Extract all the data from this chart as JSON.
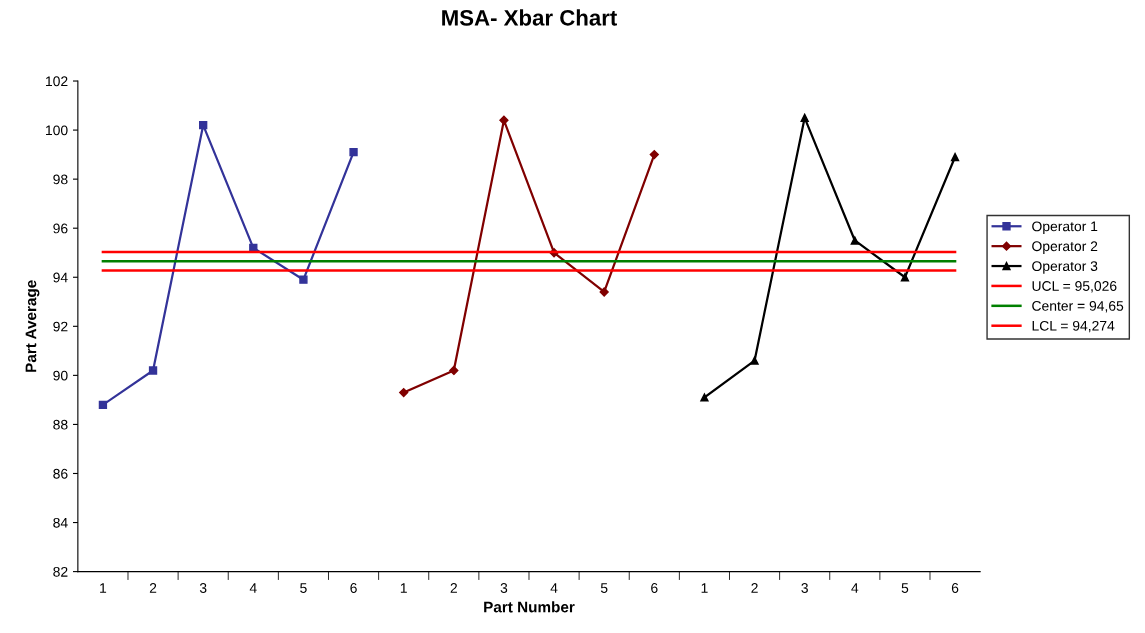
{
  "chart_data": {
    "type": "line",
    "title": "MSA- Xbar Chart",
    "xlabel": "Part Number",
    "ylabel": "Part Average",
    "categories": [
      "1",
      "2",
      "3",
      "4",
      "5",
      "6",
      "1",
      "2",
      "3",
      "4",
      "5",
      "6",
      "1",
      "2",
      "3",
      "4",
      "5",
      "6"
    ],
    "series": [
      {
        "name": "Operator 1",
        "color": "#333399",
        "marker": "square",
        "values": [
          88.8,
          90.2,
          100.2,
          95.2,
          93.9,
          99.1,
          null,
          null,
          null,
          null,
          null,
          null,
          null,
          null,
          null,
          null,
          null,
          null
        ]
      },
      {
        "name": "Operator 2",
        "color": "#800000",
        "marker": "diamond",
        "values": [
          null,
          null,
          null,
          null,
          null,
          null,
          89.3,
          90.2,
          100.4,
          95.0,
          93.4,
          99.0,
          null,
          null,
          null,
          null,
          null,
          null
        ]
      },
      {
        "name": "Operator 3",
        "color": "#000000",
        "marker": "triangle",
        "values": [
          null,
          null,
          null,
          null,
          null,
          null,
          null,
          null,
          null,
          null,
          null,
          null,
          89.1,
          90.6,
          100.5,
          95.5,
          94.0,
          98.9
        ]
      }
    ],
    "ref_lines": [
      {
        "axis": "y",
        "value": 95.026,
        "label": "UCL = 95,026",
        "color": "#ff0000"
      },
      {
        "axis": "y",
        "value": 94.65,
        "label": "Center = 94,65",
        "color": "#008000"
      },
      {
        "axis": "y",
        "value": 94.274,
        "label": "LCL = 94,274",
        "color": "#ff0000"
      }
    ],
    "ylim": [
      82,
      102
    ],
    "yticks": [
      82,
      84,
      86,
      88,
      90,
      92,
      94,
      96,
      98,
      100,
      102
    ],
    "grid": false,
    "legend": "right"
  }
}
